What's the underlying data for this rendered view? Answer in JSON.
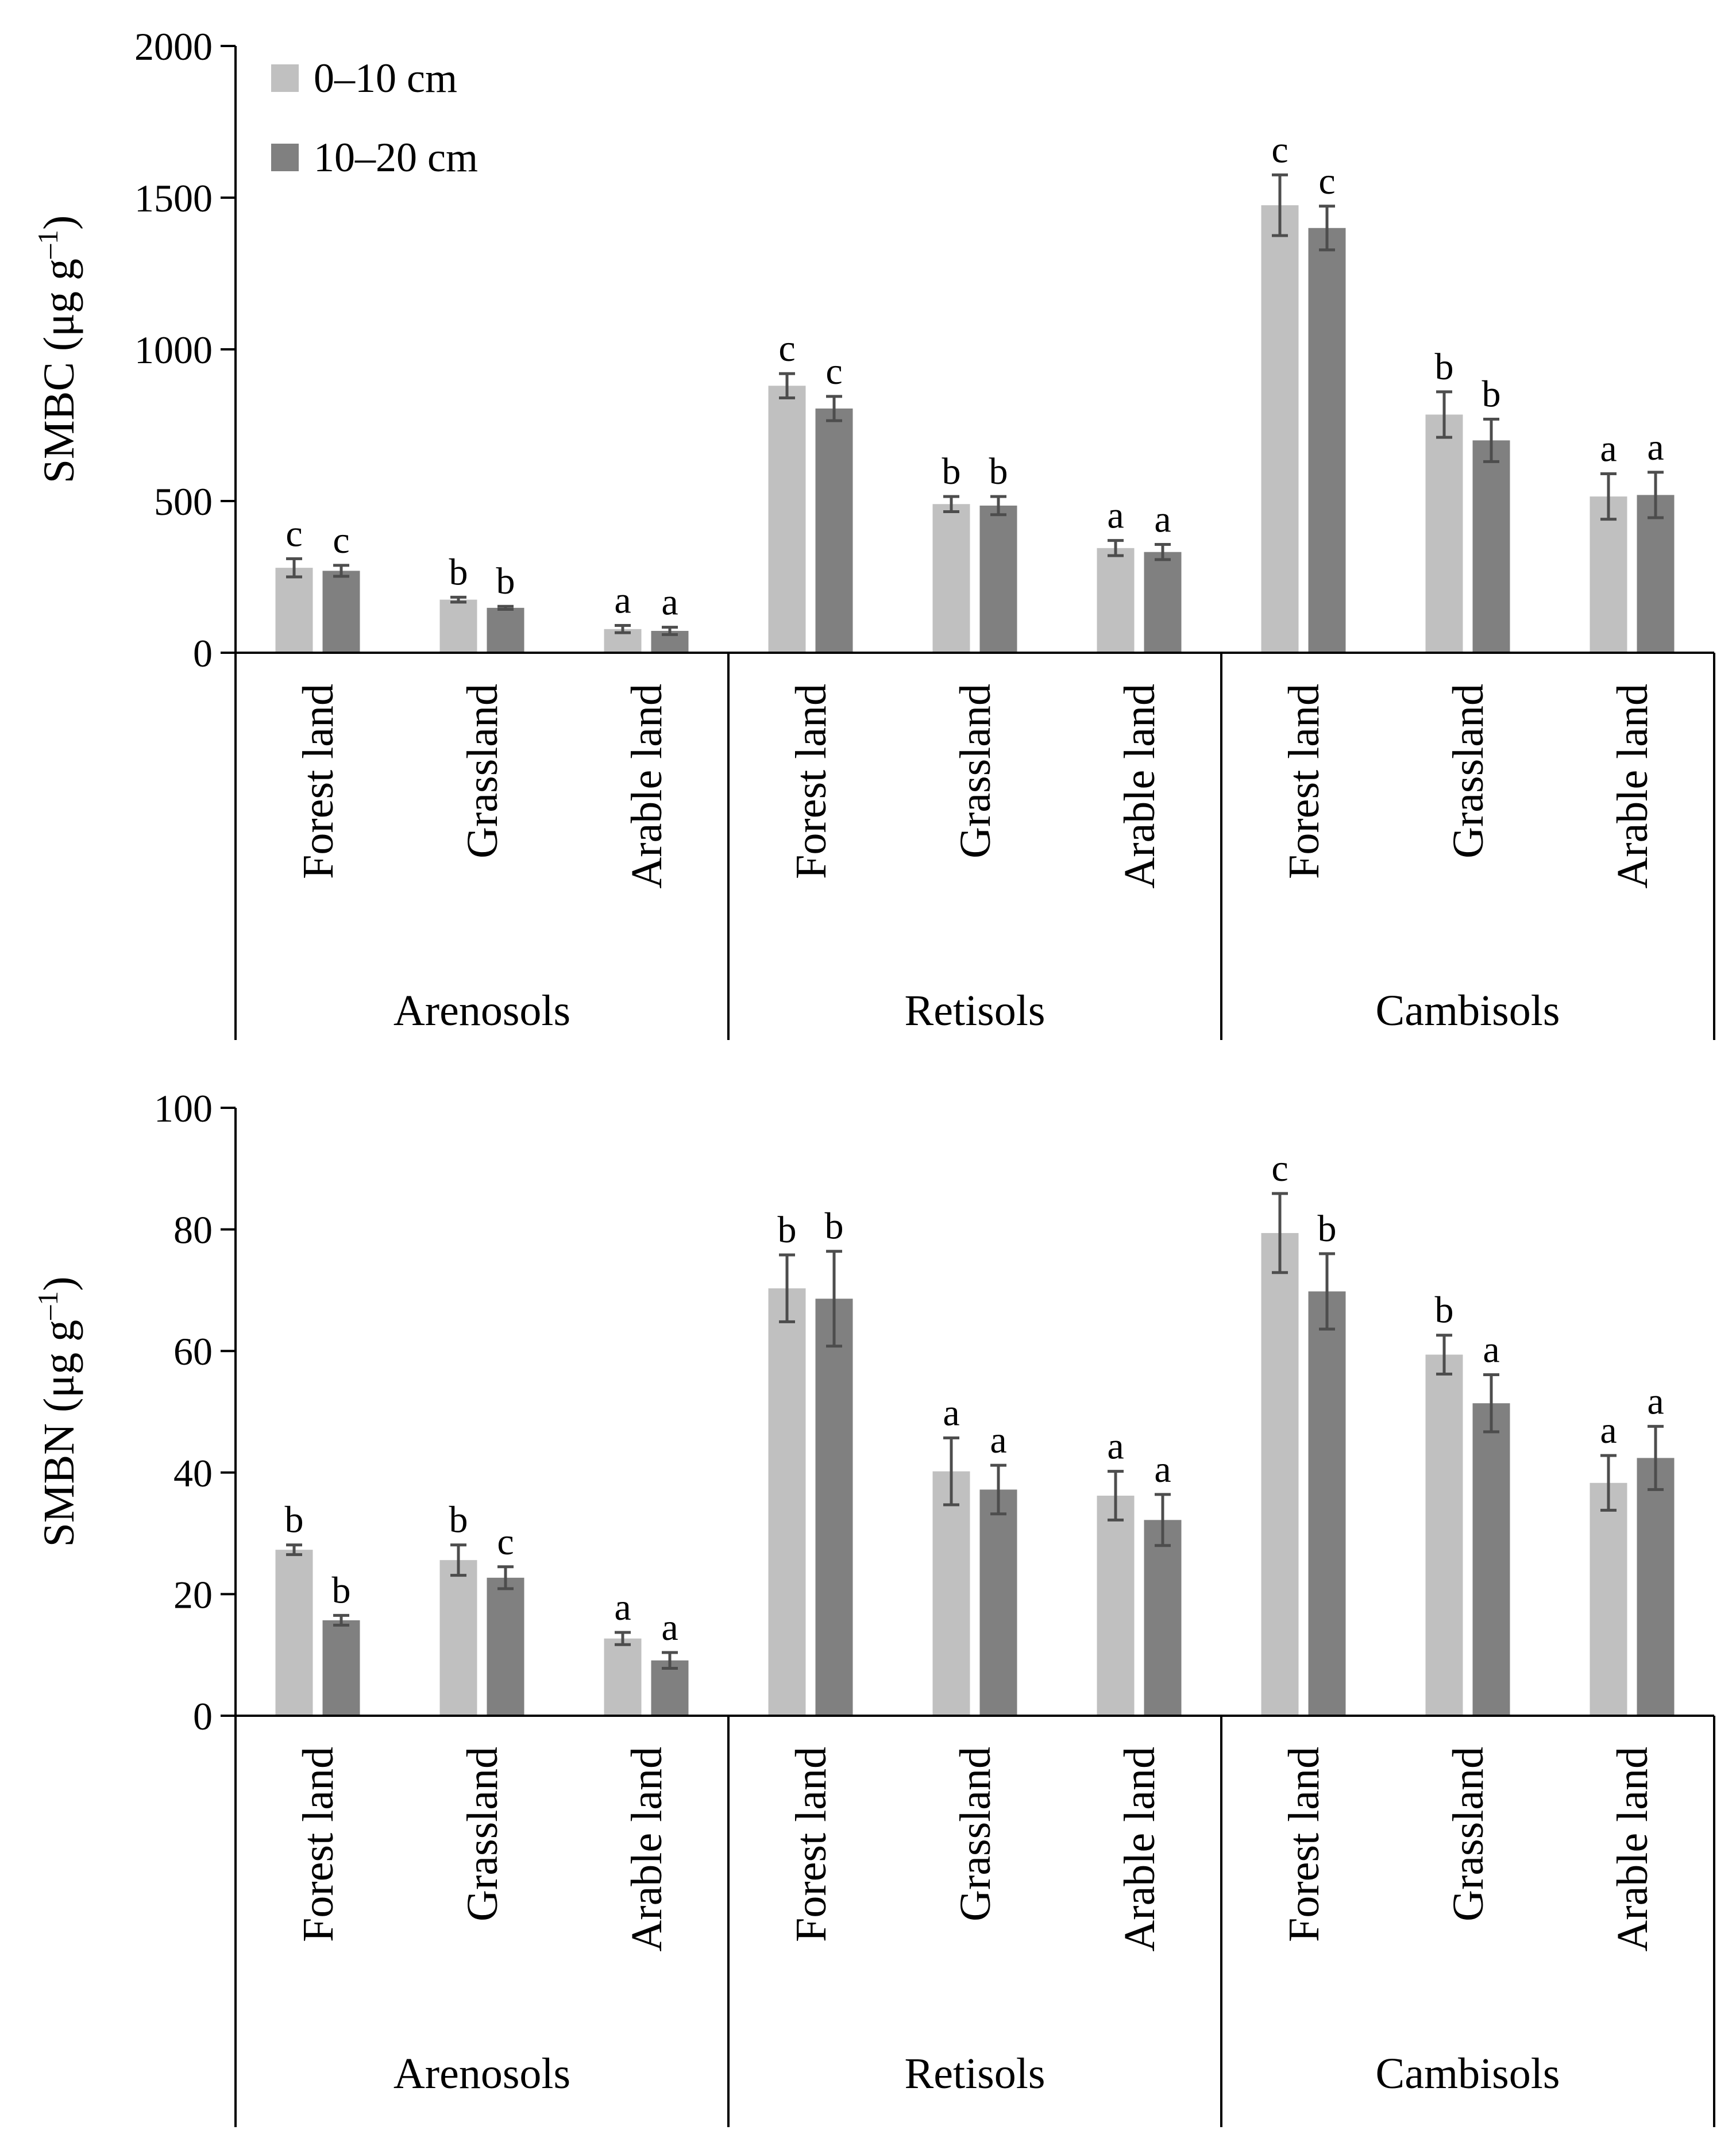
{
  "legend": [
    {
      "label": "0–10 cm",
      "color": "#c0c0c0"
    },
    {
      "label": "10–20 cm",
      "color": "#808080"
    }
  ],
  "colors": {
    "axis": "#000000",
    "error_bar": "#4d4d4d",
    "background": "#ffffff"
  },
  "chart_data": [
    {
      "type": "bar",
      "title": "",
      "ylabel": "SMBC (μg g⁻¹)",
      "ylabel_main": "SMBC (μg g",
      "ylabel_sup": "–1",
      "ylabel_close": ")",
      "ylim": [
        0,
        2000
      ],
      "yticks": [
        0,
        500,
        1000,
        1500,
        2000
      ],
      "groups": [
        "Arenosols",
        "Retisols",
        "Cambisols"
      ],
      "categories": [
        "Forest land",
        "Grassland",
        "Arable land",
        "Forest land",
        "Grassland",
        "Arable land",
        "Forest land",
        "Grassland",
        "Arable land"
      ],
      "series": [
        {
          "name": "0–10 cm",
          "values": [
            280,
            175,
            78,
            880,
            490,
            345,
            1475,
            785,
            515
          ],
          "errors": [
            30,
            8,
            12,
            40,
            25,
            25,
            100,
            75,
            75
          ],
          "letters": [
            "c",
            "b",
            "a",
            "c",
            "b",
            "a",
            "c",
            "b",
            "a"
          ]
        },
        {
          "name": "10–20 cm",
          "values": [
            270,
            148,
            72,
            805,
            485,
            332,
            1400,
            700,
            520
          ],
          "errors": [
            18,
            5,
            12,
            40,
            30,
            25,
            72,
            70,
            75
          ],
          "letters": [
            "c",
            "b",
            "a",
            "c",
            "b",
            "a",
            "c",
            "b",
            "a"
          ]
        }
      ]
    },
    {
      "type": "bar",
      "title": "",
      "ylabel": "SMBN (μg g⁻¹)",
      "ylabel_main": "SMBN (μg g",
      "ylabel_sup": "–1",
      "ylabel_close": ")",
      "ylim": [
        0,
        100
      ],
      "yticks": [
        0,
        20,
        40,
        60,
        80,
        100
      ],
      "groups": [
        "Arenosols",
        "Retisols",
        "Cambisols"
      ],
      "categories": [
        "Forest land",
        "Grassland",
        "Arable land",
        "Forest land",
        "Grassland",
        "Arable land",
        "Forest land",
        "Grassland",
        "Arable land"
      ],
      "series": [
        {
          "name": "0–10 cm",
          "values": [
            27.3,
            25.6,
            12.7,
            70.3,
            40.2,
            36.2,
            79.4,
            59.4,
            38.3
          ],
          "errors": [
            0.8,
            2.5,
            1.0,
            5.5,
            5.5,
            4.0,
            6.5,
            3.2,
            4.5
          ],
          "letters": [
            "b",
            "b",
            "a",
            "b",
            "a",
            "a",
            "c",
            "b",
            "a"
          ]
        },
        {
          "name": "10–20 cm",
          "values": [
            15.7,
            22.7,
            9.1,
            68.6,
            37.2,
            32.2,
            69.8,
            51.4,
            42.4
          ],
          "errors": [
            0.8,
            1.8,
            1.3,
            7.8,
            4.0,
            4.2,
            6.2,
            4.7,
            5.2
          ],
          "letters": [
            "b",
            "c",
            "a",
            "b",
            "a",
            "a",
            "b",
            "a",
            "a"
          ]
        }
      ]
    }
  ]
}
